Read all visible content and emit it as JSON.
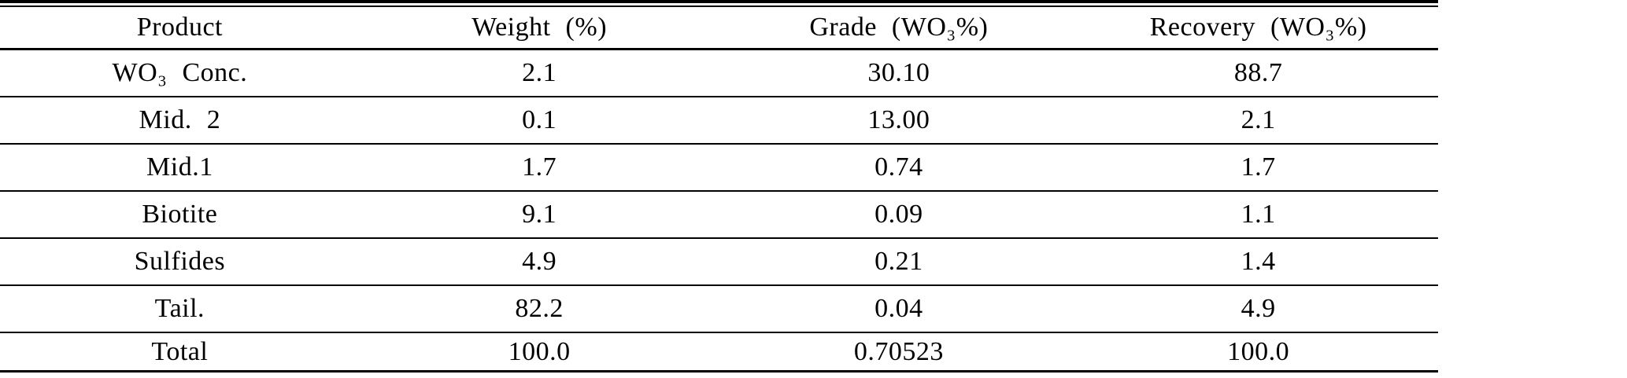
{
  "colors": {
    "background": "#ffffff",
    "text": "#000000",
    "rules": "#000000"
  },
  "chart_data": {
    "type": "table",
    "columns": [
      "Product",
      "Weight (%)",
      "Grade (WO₃%)",
      "Recovery (WO₃%)"
    ],
    "rows": [
      [
        "WO₃ Conc.",
        "2.1",
        "30.10",
        "88.7"
      ],
      [
        "Mid. 2",
        "0.1",
        "13.00",
        "2.1"
      ],
      [
        "Mid.1",
        "1.7",
        "0.74",
        "1.7"
      ],
      [
        "Biotite",
        "9.1",
        "0.09",
        "1.1"
      ],
      [
        "Sulfides",
        "4.9",
        "0.21",
        "1.4"
      ],
      [
        "Tail.",
        "82.2",
        "0.04",
        "4.9"
      ],
      [
        "Total",
        "100.0",
        "0.70523",
        "100.0"
      ]
    ]
  }
}
